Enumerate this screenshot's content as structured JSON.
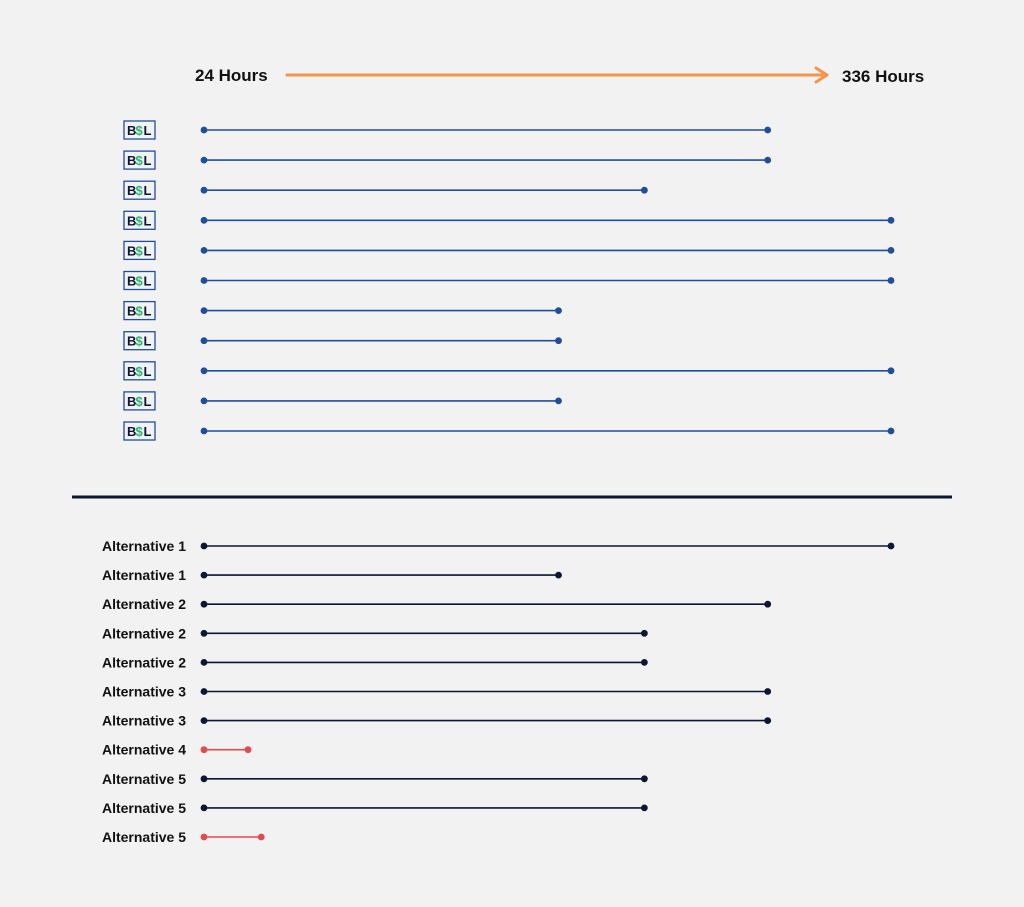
{
  "chart_data": {
    "type": "range",
    "x_unit": "Hours",
    "x_start_label": "24 Hours",
    "x_end_label": "336 Hours",
    "xlim": [
      24,
      336
    ],
    "colors": {
      "arrow": "#f4944a",
      "bsl": "#1f4e9c",
      "alternative": "#0b1733",
      "short": "#e34a4a",
      "divider": "#0b1733"
    },
    "bsl_rows": [
      {
        "logo": "BSL",
        "start": 24,
        "end": 280
      },
      {
        "logo": "BSL",
        "start": 24,
        "end": 280
      },
      {
        "logo": "BSL",
        "start": 24,
        "end": 224
      },
      {
        "logo": "BSL",
        "start": 24,
        "end": 336
      },
      {
        "logo": "BSL",
        "start": 24,
        "end": 336
      },
      {
        "logo": "BSL",
        "start": 24,
        "end": 336
      },
      {
        "logo": "BSL",
        "start": 24,
        "end": 185
      },
      {
        "logo": "BSL",
        "start": 24,
        "end": 185
      },
      {
        "logo": "BSL",
        "start": 24,
        "end": 336
      },
      {
        "logo": "BSL",
        "start": 24,
        "end": 185
      },
      {
        "logo": "BSL",
        "start": 24,
        "end": 336
      }
    ],
    "alternative_rows": [
      {
        "label": "Alternative 1",
        "start": 24,
        "end": 336,
        "color": "alternative"
      },
      {
        "label": "Alternative 1",
        "start": 24,
        "end": 185,
        "color": "alternative"
      },
      {
        "label": "Alternative 2",
        "start": 24,
        "end": 280,
        "color": "alternative"
      },
      {
        "label": "Alternative 2",
        "start": 24,
        "end": 224,
        "color": "alternative"
      },
      {
        "label": "Alternative 2",
        "start": 24,
        "end": 224,
        "color": "alternative"
      },
      {
        "label": "Alternative 3",
        "start": 24,
        "end": 280,
        "color": "alternative"
      },
      {
        "label": "Alternative 3",
        "start": 24,
        "end": 280,
        "color": "alternative"
      },
      {
        "label": "Alternative 4",
        "start": 24,
        "end": 44,
        "color": "short"
      },
      {
        "label": "Alternative 5",
        "start": 24,
        "end": 224,
        "color": "alternative"
      },
      {
        "label": "Alternative 5",
        "start": 24,
        "end": 224,
        "color": "alternative"
      },
      {
        "label": "Alternative 5",
        "start": 24,
        "end": 50,
        "color": "short"
      }
    ]
  }
}
